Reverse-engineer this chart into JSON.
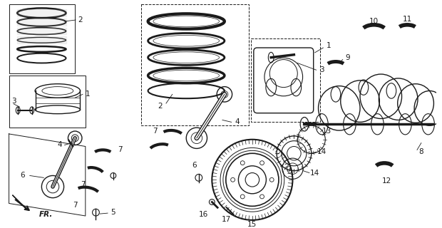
{
  "bg_color": "#ffffff",
  "line_color": "#1a1a1a",
  "fig_width": 6.2,
  "fig_height": 3.2,
  "dpi": 100
}
